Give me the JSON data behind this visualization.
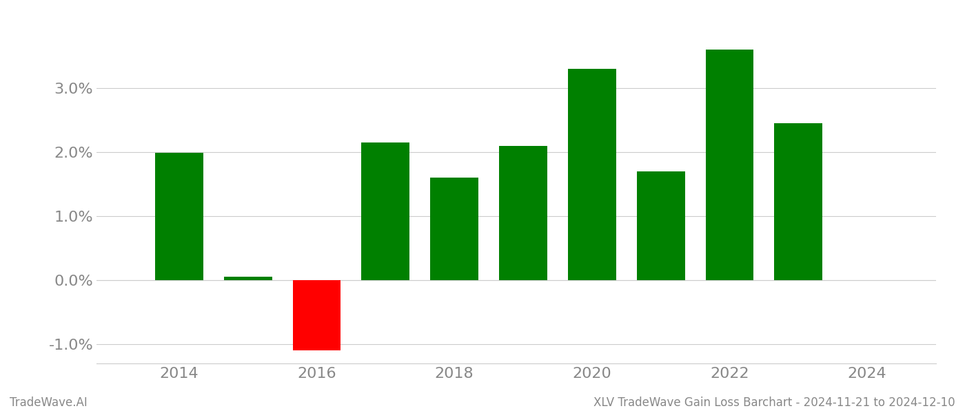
{
  "years": [
    2014,
    2015,
    2016,
    2017,
    2018,
    2019,
    2020,
    2021,
    2022,
    2023
  ],
  "values": [
    0.0199,
    0.0005,
    -0.011,
    0.0215,
    0.016,
    0.021,
    0.033,
    0.017,
    0.036,
    0.0245
  ],
  "colors": [
    "#008000",
    "#008000",
    "#ff0000",
    "#008000",
    "#008000",
    "#008000",
    "#008000",
    "#008000",
    "#008000",
    "#008000"
  ],
  "ylim_min": -0.013,
  "ylim_max": 0.0405,
  "footer_left": "TradeWave.AI",
  "footer_right": "XLV TradeWave Gain Loss Barchart - 2024-11-21 to 2024-12-10",
  "bar_width": 0.7,
  "grid_color": "#cccccc",
  "background_color": "#ffffff",
  "axis_label_color": "#888888",
  "footer_color": "#888888",
  "ytick_fontsize": 16,
  "xtick_fontsize": 16,
  "footer_fontsize": 12
}
